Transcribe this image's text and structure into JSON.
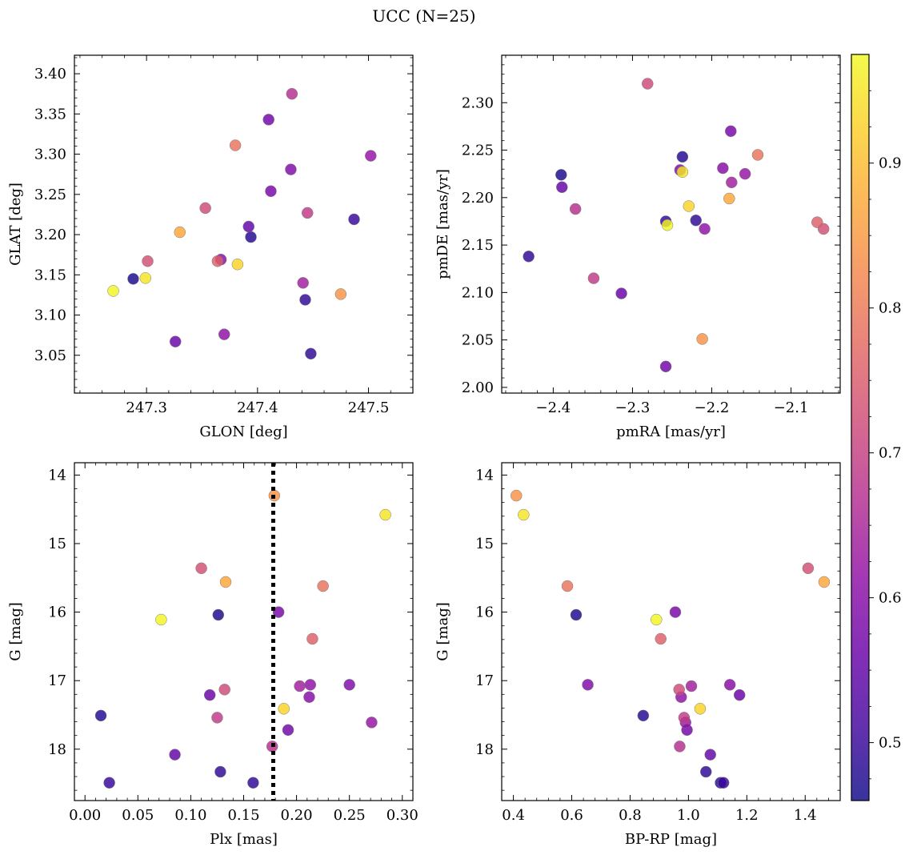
{
  "chart_data": {
    "type": "scatter",
    "title": "UCC (N=25)",
    "colorbar": {
      "cmap": "plasma",
      "range": [
        0.46,
        0.975
      ],
      "ticks": [
        0.5,
        0.6,
        0.7,
        0.8,
        0.9
      ],
      "tick_labels": [
        "0.5",
        "0.6",
        "0.7",
        "0.8",
        "0.9"
      ]
    },
    "color_values": [
      0.47,
      0.48,
      0.49,
      0.49,
      0.5,
      0.55,
      0.56,
      0.57,
      0.58,
      0.59,
      0.6,
      0.61,
      0.62,
      0.64,
      0.67,
      0.69,
      0.72,
      0.73,
      0.76,
      0.79,
      0.84,
      0.87,
      0.93,
      0.95,
      0.97
    ],
    "panels": [
      {
        "xlabel": "GLON [deg]",
        "ylabel": "GLAT [deg]",
        "xlim": [
          247.235,
          247.54
        ],
        "ylim": [
          3.003,
          3.423
        ],
        "invert_y": false,
        "xticks": [
          247.3,
          247.4,
          247.5
        ],
        "xtick_labels": [
          "247.3",
          "247.4",
          "247.5"
        ],
        "yticks": [
          3.05,
          3.1,
          3.15,
          3.2,
          3.25,
          3.3,
          3.35,
          3.4
        ],
        "ytick_labels": [
          "3.05",
          "3.10",
          "3.15",
          "3.20",
          "3.25",
          "3.30",
          "3.35",
          "3.40"
        ],
        "x": [
          247.288,
          247.394,
          247.448,
          247.443,
          247.487,
          247.392,
          247.326,
          247.41,
          247.412,
          247.43,
          247.367,
          247.37,
          247.502,
          247.441,
          247.431,
          247.445,
          247.353,
          247.301,
          247.364,
          247.38,
          247.475,
          247.33,
          247.382,
          247.299,
          247.27
        ],
        "y": [
          3.145,
          3.197,
          3.052,
          3.119,
          3.219,
          3.21,
          3.067,
          3.343,
          3.254,
          3.281,
          3.169,
          3.076,
          3.298,
          3.14,
          3.375,
          3.227,
          3.233,
          3.167,
          3.167,
          3.311,
          3.126,
          3.203,
          3.163,
          3.146,
          3.13
        ]
      },
      {
        "xlabel": "pmRA [mas/yr]",
        "ylabel": "pmDE [mas/yr]",
        "xlim": [
          -2.465,
          -2.038
        ],
        "ylim": [
          1.994,
          2.35
        ],
        "invert_y": false,
        "xticks": [
          -2.4,
          -2.3,
          -2.2,
          -2.1
        ],
        "xtick_labels": [
          "−2.4",
          "−2.3",
          "−2.2",
          "−2.1"
        ],
        "yticks": [
          2.0,
          2.05,
          2.1,
          2.15,
          2.2,
          2.25,
          2.3
        ],
        "ytick_labels": [
          "2.00",
          "2.05",
          "2.10",
          "2.15",
          "2.20",
          "2.25",
          "2.30"
        ],
        "x": [
          -2.39,
          -2.237,
          -2.431,
          -2.22,
          -2.258,
          -2.389,
          -2.314,
          -2.258,
          -2.176,
          -2.24,
          -2.186,
          -2.209,
          -2.158,
          -2.175,
          -2.372,
          -2.349,
          -2.281,
          -2.059,
          -2.067,
          -2.142,
          -2.212,
          -2.178,
          -2.229,
          -2.237,
          -2.256
        ],
        "y": [
          2.224,
          2.243,
          2.138,
          2.176,
          2.175,
          2.211,
          2.099,
          2.022,
          2.27,
          2.229,
          2.231,
          2.167,
          2.225,
          2.216,
          2.188,
          2.115,
          2.32,
          2.167,
          2.174,
          2.245,
          2.051,
          2.199,
          2.191,
          2.227,
          2.171
        ]
      },
      {
        "xlabel": "Plx [mas]",
        "ylabel": "G [mag]",
        "xlim": [
          -0.01,
          0.31
        ],
        "ylim": [
          18.75,
          13.82
        ],
        "invert_y": true,
        "xticks": [
          0.0,
          0.05,
          0.1,
          0.15,
          0.2,
          0.25,
          0.3
        ],
        "xtick_labels": [
          "0.00",
          "0.05",
          "0.10",
          "0.15",
          "0.20",
          "0.25",
          "0.30"
        ],
        "yticks": [
          14,
          15,
          16,
          17,
          18
        ],
        "ytick_labels": [
          "14",
          "15",
          "16",
          "17",
          "18"
        ],
        "vline": 0.178,
        "x": [
          0.126,
          0.015,
          0.128,
          0.159,
          0.023,
          0.085,
          0.118,
          0.192,
          0.183,
          0.25,
          0.212,
          0.213,
          0.271,
          0.203,
          0.177,
          0.125,
          0.132,
          0.11,
          0.215,
          0.225,
          0.179,
          0.133,
          0.188,
          0.284,
          0.072
        ],
        "y": [
          16.04,
          17.51,
          18.33,
          18.49,
          18.49,
          18.08,
          17.21,
          17.72,
          16.0,
          17.06,
          17.24,
          17.06,
          17.61,
          17.08,
          17.96,
          17.54,
          17.13,
          15.36,
          16.39,
          15.62,
          14.3,
          15.56,
          17.41,
          14.58,
          16.11
        ]
      },
      {
        "xlabel": "BP-RP [mag]",
        "ylabel": "G [mag]",
        "xlim": [
          0.36,
          1.52
        ],
        "ylim": [
          18.75,
          13.82
        ],
        "invert_y": true,
        "xticks": [
          0.4,
          0.6,
          0.8,
          1.0,
          1.2,
          1.4
        ],
        "xtick_labels": [
          "0.4",
          "0.6",
          "0.8",
          "1.0",
          "1.2",
          "1.4"
        ],
        "yticks": [
          14,
          15,
          16,
          17,
          18
        ],
        "ytick_labels": [
          "14",
          "15",
          "16",
          "17",
          "18"
        ],
        "x": [
          0.615,
          0.845,
          1.06,
          1.11,
          1.12,
          1.075,
          1.175,
          0.995,
          0.955,
          0.655,
          1.142,
          0.975,
          0.99,
          1.01,
          0.97,
          0.985,
          0.968,
          1.41,
          0.905,
          0.585,
          0.41,
          1.465,
          1.04,
          0.435,
          0.89
        ],
        "y": [
          16.04,
          17.51,
          18.33,
          18.49,
          18.49,
          18.08,
          17.21,
          17.72,
          16.0,
          17.06,
          17.06,
          17.24,
          17.61,
          17.08,
          17.96,
          17.54,
          17.13,
          15.36,
          16.39,
          15.62,
          14.3,
          15.56,
          17.41,
          14.58,
          16.11
        ]
      }
    ]
  }
}
